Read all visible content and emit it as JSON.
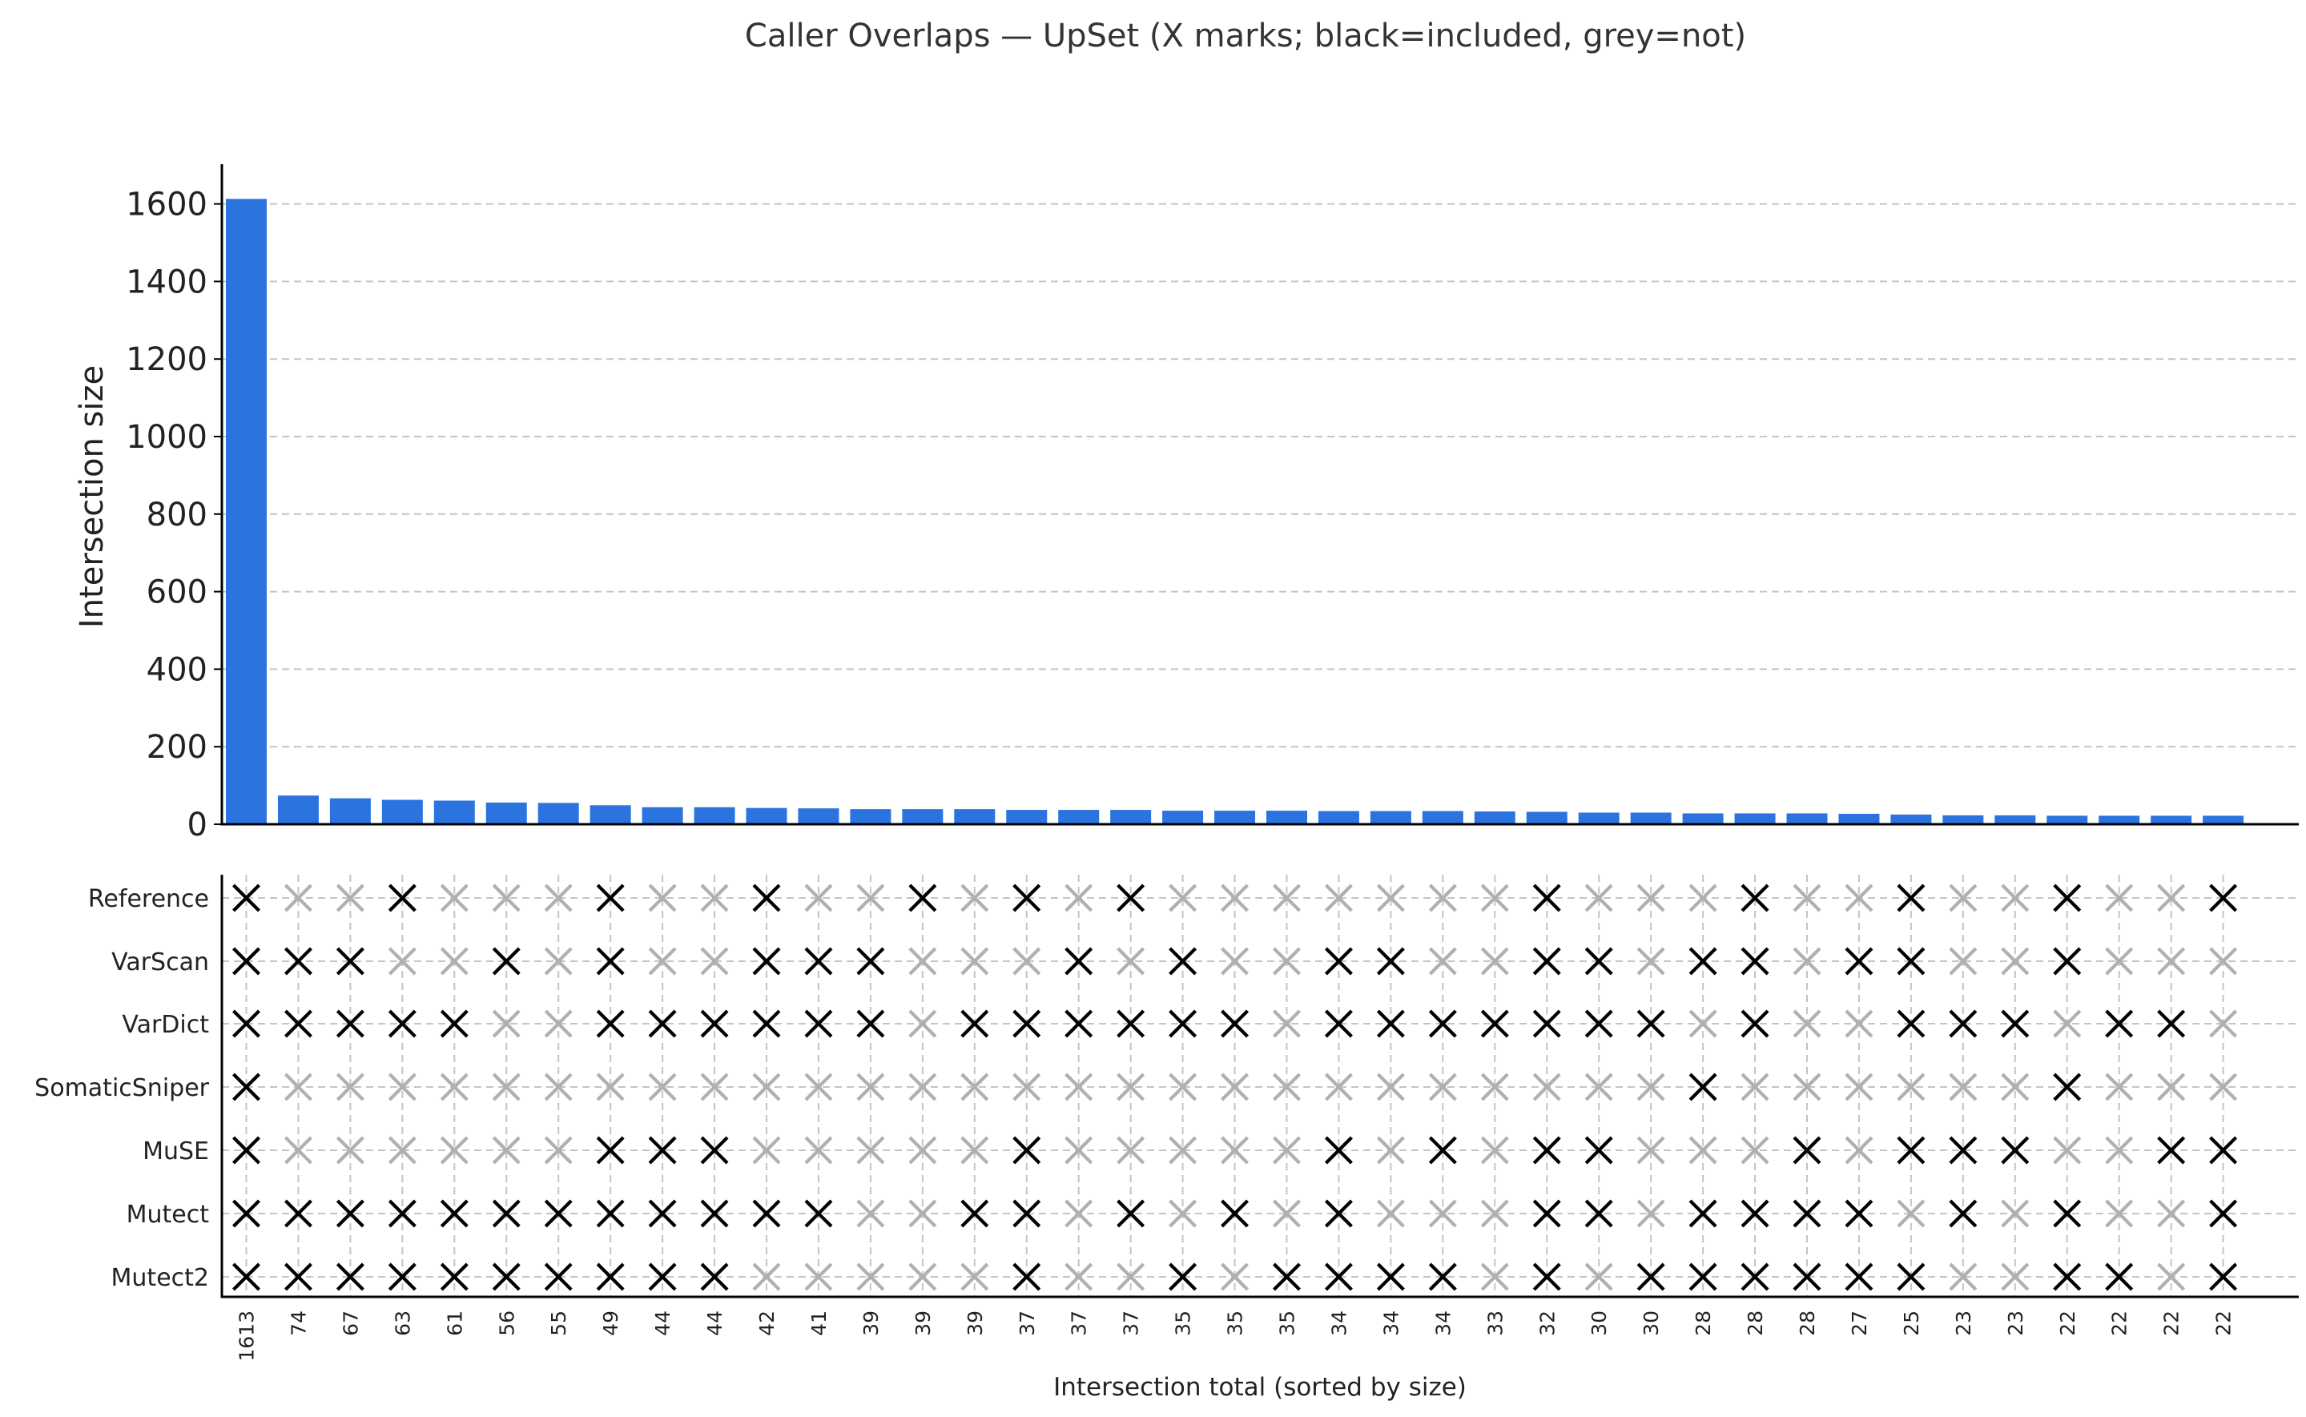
{
  "chart_data": {
    "type": "bar",
    "title": "Caller Overlaps — UpSet (X marks; black=included, grey=not)",
    "ylabel": "Intersection size",
    "xlabel": "Intersection total (sorted by size)",
    "ylim": [
      0,
      1700
    ],
    "yticks": [
      0,
      200,
      400,
      600,
      800,
      1000,
      1200,
      1400,
      1600
    ],
    "grid": true,
    "colors": {
      "bar": "#2b74e0",
      "included": "#000000",
      "excluded": "#b0b0b0"
    },
    "sets": [
      "Reference",
      "VarScan",
      "VarDict",
      "SomaticSniper",
      "MuSE",
      "Mutect",
      "Mutect2"
    ],
    "values": [
      1613,
      74,
      67,
      63,
      61,
      56,
      55,
      49,
      44,
      44,
      42,
      41,
      39,
      39,
      39,
      37,
      37,
      37,
      35,
      35,
      35,
      34,
      34,
      34,
      33,
      32,
      30,
      30,
      28,
      28,
      28,
      27,
      25,
      23,
      23,
      22,
      22,
      22,
      22
    ],
    "categories": [
      "1613",
      "74",
      "67",
      "63",
      "61",
      "56",
      "55",
      "49",
      "44",
      "44",
      "42",
      "41",
      "39",
      "39",
      "39",
      "37",
      "37",
      "37",
      "35",
      "35",
      "35",
      "34",
      "34",
      "34",
      "33",
      "32",
      "30",
      "30",
      "28",
      "28",
      "28",
      "27",
      "25",
      "23",
      "23",
      "22",
      "22",
      "22",
      "22"
    ],
    "membership": [
      [
        1,
        0,
        0,
        1,
        0,
        0,
        0,
        1,
        0,
        0,
        1,
        0,
        0,
        1,
        0,
        1,
        0,
        1,
        0,
        0,
        0,
        0,
        0,
        0,
        0,
        1,
        0,
        0,
        0,
        1,
        0,
        0,
        1,
        0,
        0,
        1,
        0,
        0,
        1
      ],
      [
        1,
        1,
        1,
        0,
        0,
        1,
        0,
        1,
        0,
        0,
        1,
        1,
        1,
        0,
        0,
        0,
        1,
        0,
        1,
        0,
        0,
        1,
        1,
        0,
        0,
        1,
        1,
        0,
        1,
        1,
        0,
        1,
        1,
        0,
        0,
        1,
        0,
        0,
        0
      ],
      [
        1,
        1,
        1,
        1,
        1,
        0,
        0,
        1,
        1,
        1,
        1,
        1,
        1,
        0,
        1,
        1,
        1,
        1,
        1,
        1,
        0,
        1,
        1,
        1,
        1,
        1,
        1,
        1,
        0,
        1,
        0,
        0,
        1,
        1,
        1,
        0,
        1,
        1,
        0
      ],
      [
        1,
        0,
        0,
        0,
        0,
        0,
        0,
        0,
        0,
        0,
        0,
        0,
        0,
        0,
        0,
        0,
        0,
        0,
        0,
        0,
        0,
        0,
        0,
        0,
        0,
        0,
        0,
        0,
        1,
        0,
        0,
        0,
        0,
        0,
        0,
        1,
        0,
        0,
        0
      ],
      [
        1,
        0,
        0,
        0,
        0,
        0,
        0,
        1,
        1,
        1,
        0,
        0,
        0,
        0,
        0,
        1,
        0,
        0,
        0,
        0,
        0,
        1,
        0,
        1,
        0,
        1,
        1,
        0,
        0,
        0,
        1,
        0,
        1,
        1,
        1,
        0,
        0,
        1,
        1
      ],
      [
        1,
        1,
        1,
        1,
        1,
        1,
        1,
        1,
        1,
        1,
        1,
        1,
        0,
        0,
        1,
        1,
        0,
        1,
        0,
        1,
        0,
        1,
        0,
        0,
        0,
        1,
        1,
        0,
        1,
        1,
        1,
        1,
        0,
        1,
        0,
        1,
        0,
        0,
        1
      ],
      [
        1,
        1,
        1,
        1,
        1,
        1,
        1,
        1,
        1,
        1,
        0,
        0,
        0,
        0,
        0,
        1,
        0,
        0,
        1,
        0,
        1,
        1,
        1,
        1,
        0,
        1,
        0,
        1,
        1,
        1,
        1,
        1,
        1,
        0,
        0,
        1,
        1,
        0,
        1
      ]
    ]
  }
}
